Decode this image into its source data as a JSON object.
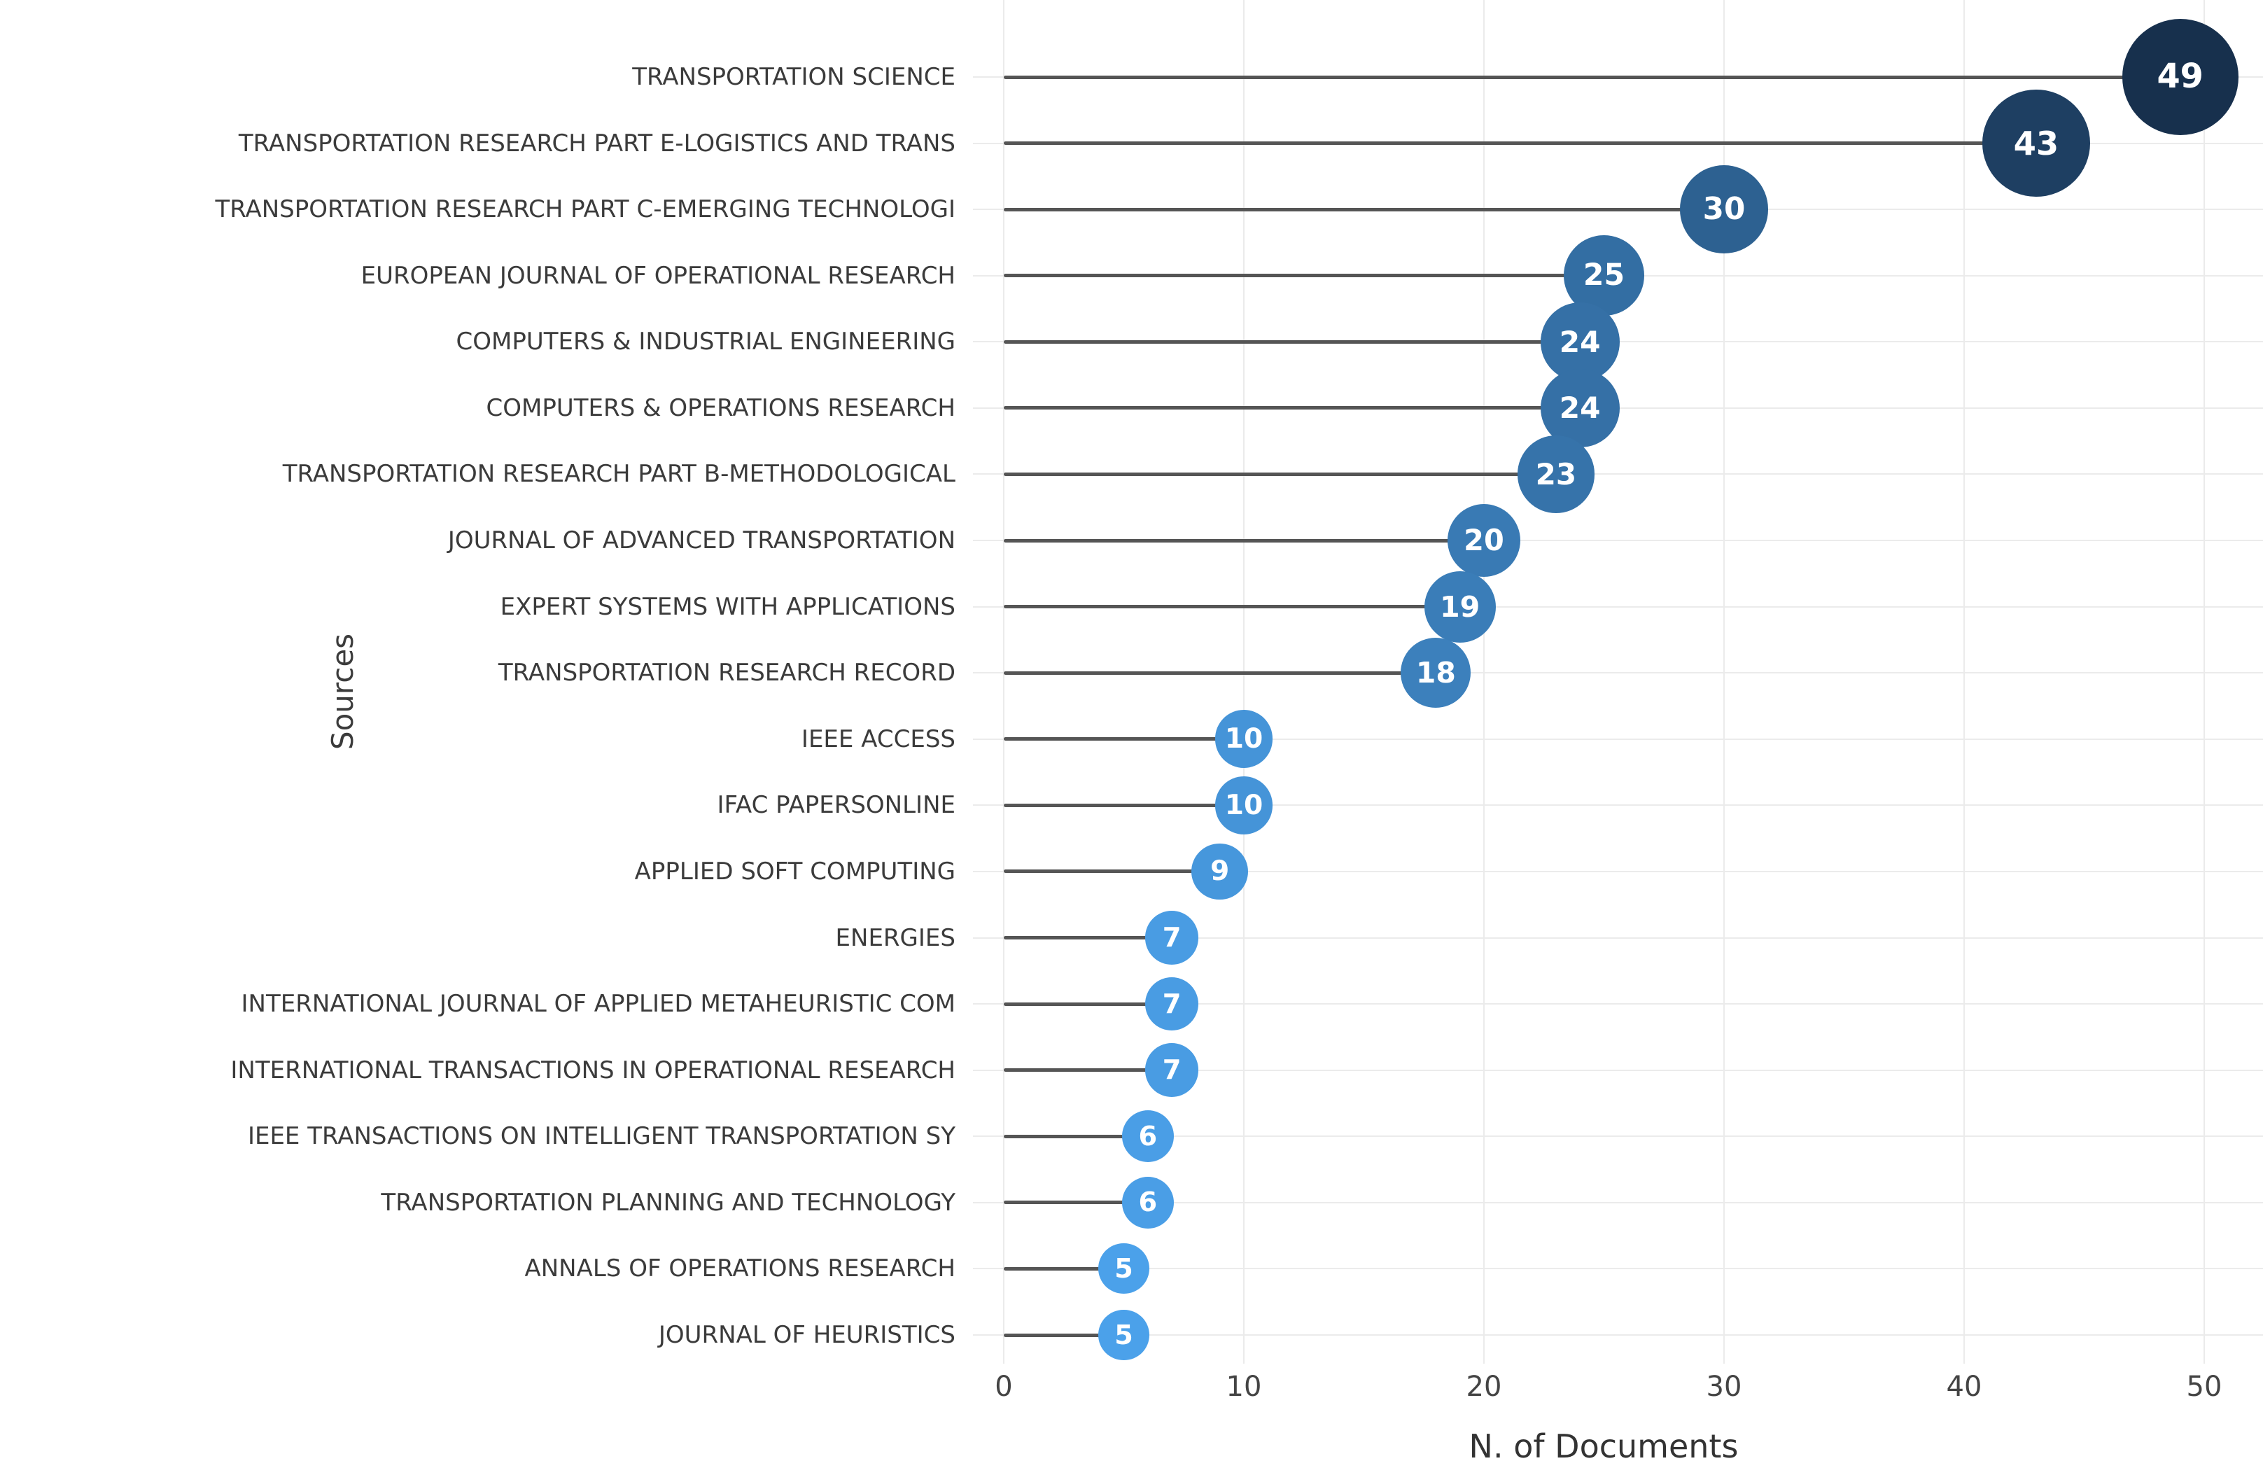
{
  "chart_data": {
    "type": "scatter",
    "variant": "lollipop",
    "title": "",
    "xlabel": "N. of Documents",
    "ylabel": "Sources",
    "xlim": [
      0,
      50
    ],
    "x_ticks": [
      0,
      10,
      20,
      30,
      40,
      50
    ],
    "grid": true,
    "legend": false,
    "categories": [
      "TRANSPORTATION SCIENCE",
      "TRANSPORTATION RESEARCH PART E-LOGISTICS AND TRANS",
      "TRANSPORTATION RESEARCH PART C-EMERGING TECHNOLOGI",
      "EUROPEAN JOURNAL OF OPERATIONAL RESEARCH",
      "COMPUTERS & INDUSTRIAL ENGINEERING",
      "COMPUTERS & OPERATIONS RESEARCH",
      "TRANSPORTATION RESEARCH PART B-METHODOLOGICAL",
      "JOURNAL OF ADVANCED TRANSPORTATION",
      "EXPERT SYSTEMS WITH APPLICATIONS",
      "TRANSPORTATION RESEARCH RECORD",
      "IEEE ACCESS",
      "IFAC PAPERSONLINE",
      "APPLIED SOFT COMPUTING",
      "ENERGIES",
      "INTERNATIONAL JOURNAL OF APPLIED METAHEURISTIC COM",
      "INTERNATIONAL TRANSACTIONS IN OPERATIONAL RESEARCH",
      "IEEE TRANSACTIONS ON INTELLIGENT TRANSPORTATION SY",
      "TRANSPORTATION PLANNING AND TECHNOLOGY",
      "ANNALS OF OPERATIONS RESEARCH",
      "JOURNAL OF HEURISTICS"
    ],
    "values": [
      49,
      43,
      30,
      25,
      24,
      24,
      23,
      20,
      19,
      18,
      10,
      10,
      9,
      7,
      7,
      7,
      6,
      6,
      5,
      5
    ]
  },
  "colors": {
    "background": "#ffffff",
    "category_label": "#3b3b3b",
    "tick_label": "#444444",
    "axis_title": "#333333",
    "stem": "#555555",
    "grid": "#ebebeb",
    "bubble_scale_low": "#4ba1ea",
    "bubble_scale_high": "#17304d",
    "bubble_text": "#ffffff"
  }
}
